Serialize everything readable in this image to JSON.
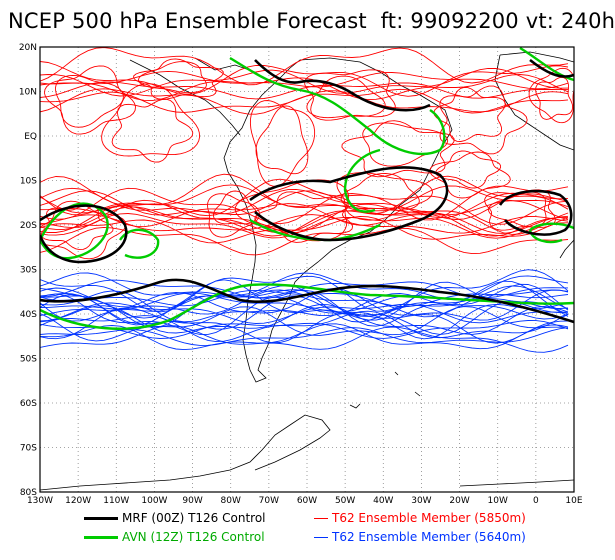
{
  "title": "NCEP 500 hPa Ensemble Forecast  ft: 99092200 vt: 240h",
  "lat_ticks": [
    "20N",
    "10N",
    "EQ",
    "10S",
    "20S",
    "30S",
    "40S",
    "50S",
    "60S",
    "70S",
    "80S"
  ],
  "lon_ticks": [
    "130W",
    "120W",
    "110W",
    "100W",
    "90W",
    "80W",
    "70W",
    "60W",
    "50W",
    "40W",
    "30W",
    "20W",
    "10W",
    "0",
    "10E"
  ],
  "legend": [
    {
      "label": "MRF (00Z) T126 Control",
      "color": "#000000",
      "width": 3
    },
    {
      "label": "T62 Ensemble Member (5850m)",
      "color": "#ff0000",
      "width": 1
    },
    {
      "label": "AVN (12Z) T126 Control",
      "color": "#00cc00",
      "width": 3
    },
    {
      "label": "T62 Ensemble Member (5640m)",
      "color": "#0033ff",
      "width": 1
    }
  ],
  "colors": {
    "mrf": "#000000",
    "avn": "#00cc00",
    "red_members": "#ff0000",
    "blue_members": "#0033ff",
    "grid": "#888888"
  }
}
